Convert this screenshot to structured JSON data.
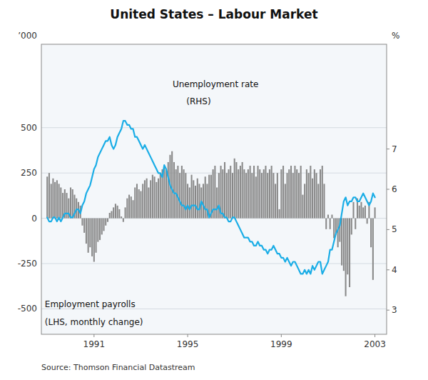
{
  "chart_data": {
    "type": "bar",
    "title": "United States – Labour Market",
    "source": "Source: Thomson Financial Datastream",
    "y_label": "’000",
    "y2_label": "%",
    "annotations": [
      "Unemployment rate",
      "(RHS)",
      "Employment payrolls",
      "(LHS, monthly change)"
    ],
    "grid": true,
    "xlim": [
      1988.75,
      2003.5
    ],
    "xticks": [
      1991,
      1995,
      1999,
      2003
    ],
    "ylim": [
      -640,
      960
    ],
    "yticks": [
      -500,
      -250,
      0,
      250,
      500
    ],
    "y2lim": [
      2.4,
      9.6
    ],
    "y2ticks": [
      3,
      4,
      5,
      6,
      7
    ],
    "x": [
      1989.0,
      1989.083,
      1989.167,
      1989.25,
      1989.333,
      1989.417,
      1989.5,
      1989.583,
      1989.667,
      1989.75,
      1989.833,
      1989.917,
      1990.0,
      1990.083,
      1990.167,
      1990.25,
      1990.333,
      1990.417,
      1990.5,
      1990.583,
      1990.667,
      1990.75,
      1990.833,
      1990.917,
      1991.0,
      1991.083,
      1991.167,
      1991.25,
      1991.333,
      1991.417,
      1991.5,
      1991.583,
      1991.667,
      1991.75,
      1991.833,
      1991.917,
      1992.0,
      1992.083,
      1992.167,
      1992.25,
      1992.333,
      1992.417,
      1992.5,
      1992.583,
      1992.667,
      1992.75,
      1992.833,
      1992.917,
      1993.0,
      1993.083,
      1993.167,
      1993.25,
      1993.333,
      1993.417,
      1993.5,
      1993.583,
      1993.667,
      1993.75,
      1993.833,
      1993.917,
      1994.0,
      1994.083,
      1994.167,
      1994.25,
      1994.333,
      1994.417,
      1994.5,
      1994.583,
      1994.667,
      1994.75,
      1994.833,
      1994.917,
      1995.0,
      1995.083,
      1995.167,
      1995.25,
      1995.333,
      1995.417,
      1995.5,
      1995.583,
      1995.667,
      1995.75,
      1995.833,
      1995.917,
      1996.0,
      1996.083,
      1996.167,
      1996.25,
      1996.333,
      1996.417,
      1996.5,
      1996.583,
      1996.667,
      1996.75,
      1996.833,
      1996.917,
      1997.0,
      1997.083,
      1997.167,
      1997.25,
      1997.333,
      1997.417,
      1997.5,
      1997.583,
      1997.667,
      1997.75,
      1997.833,
      1997.917,
      1998.0,
      1998.083,
      1998.167,
      1998.25,
      1998.333,
      1998.417,
      1998.5,
      1998.583,
      1998.667,
      1998.75,
      1998.833,
      1998.917,
      1999.0,
      1999.083,
      1999.167,
      1999.25,
      1999.333,
      1999.417,
      1999.5,
      1999.583,
      1999.667,
      1999.75,
      1999.833,
      1999.917,
      2000.0,
      2000.083,
      2000.167,
      2000.25,
      2000.333,
      2000.417,
      2000.5,
      2000.583,
      2000.667,
      2000.75,
      2000.833,
      2000.917,
      2001.0,
      2001.083,
      2001.167,
      2001.25,
      2001.333,
      2001.417,
      2001.5,
      2001.583,
      2001.667,
      2001.75,
      2001.833,
      2001.917,
      2002.0,
      2002.083,
      2002.167,
      2002.25,
      2002.333,
      2002.417,
      2002.5,
      2002.583,
      2002.667,
      2002.75,
      2002.833,
      2002.917,
      2003.0
    ],
    "series": [
      {
        "type": "bar",
        "color": "#888888",
        "values": [
          230,
          250,
          190,
          220,
          200,
          210,
          190,
          170,
          140,
          160,
          140,
          110,
          170,
          160,
          130,
          110,
          90,
          70,
          -40,
          -80,
          -140,
          -190,
          -160,
          -210,
          -240,
          -190,
          -130,
          -120,
          -90,
          -70,
          -40,
          -20,
          30,
          40,
          60,
          80,
          70,
          50,
          10,
          -20,
          60,
          110,
          130,
          120,
          100,
          170,
          190,
          160,
          150,
          190,
          210,
          220,
          170,
          210,
          240,
          230,
          200,
          220,
          250,
          270,
          290,
          270,
          310,
          350,
          370,
          310,
          270,
          290,
          250,
          290,
          270,
          250,
          190,
          170,
          240,
          210,
          180,
          220,
          190,
          170,
          190,
          230,
          190,
          240,
          240,
          270,
          290,
          170,
          250,
          290,
          270,
          310,
          250,
          270,
          290,
          250,
          330,
          310,
          270,
          290,
          310,
          270,
          250,
          270,
          290,
          250,
          290,
          230,
          290,
          270,
          250,
          270,
          290,
          250,
          270,
          290,
          250,
          190,
          250,
          50,
          270,
          290,
          190,
          250,
          270,
          290,
          250,
          290,
          270,
          250,
          290,
          130,
          190,
          270,
          250,
          290,
          220,
          270,
          250,
          190,
          270,
          290,
          190,
          -60,
          20,
          -60,
          20,
          -110,
          -90,
          -160,
          -130,
          -260,
          -290,
          -430,
          -310,
          -380,
          -90,
          90,
          -60,
          110,
          70,
          90,
          60,
          70,
          -30,
          90,
          -160,
          -340,
          60
        ]
      },
      {
        "type": "line",
        "axis": "y2",
        "color": "#1aade6",
        "values": [
          5.3,
          5.2,
          5.2,
          5.3,
          5.3,
          5.2,
          5.3,
          5.2,
          5.3,
          5.4,
          5.4,
          5.4,
          5.3,
          5.3,
          5.4,
          5.5,
          5.5,
          5.4,
          5.6,
          5.7,
          5.9,
          6.0,
          6.1,
          6.3,
          6.5,
          6.6,
          6.8,
          6.9,
          7.0,
          7.1,
          7.2,
          7.2,
          7.3,
          7.1,
          7.0,
          7.1,
          7.3,
          7.4,
          7.5,
          7.7,
          7.7,
          7.6,
          7.6,
          7.5,
          7.5,
          7.3,
          7.3,
          7.2,
          7.1,
          7.0,
          7.1,
          7.0,
          6.9,
          6.8,
          6.7,
          6.6,
          6.5,
          6.4,
          6.4,
          6.3,
          6.6,
          6.5,
          6.3,
          6.1,
          6.0,
          5.9,
          5.9,
          5.8,
          5.7,
          5.6,
          5.6,
          5.5,
          5.6,
          5.5,
          5.6,
          5.6,
          5.6,
          5.5,
          5.5,
          5.7,
          5.6,
          5.5,
          5.5,
          5.3,
          5.4,
          5.5,
          5.5,
          5.5,
          5.6,
          5.4,
          5.4,
          5.3,
          5.3,
          5.2,
          5.2,
          5.3,
          5.3,
          5.2,
          5.1,
          5.0,
          4.9,
          4.8,
          4.8,
          4.8,
          4.7,
          4.7,
          4.6,
          4.6,
          4.7,
          4.6,
          4.6,
          4.5,
          4.5,
          4.4,
          4.5,
          4.5,
          4.6,
          4.5,
          4.4,
          4.4,
          4.3,
          4.3,
          4.2,
          4.3,
          4.2,
          4.1,
          4.2,
          4.2,
          4.1,
          4.0,
          3.9,
          3.9,
          4.0,
          3.9,
          4.0,
          3.9,
          4.1,
          4.0,
          4.1,
          4.2,
          4.2,
          3.9,
          4.0,
          4.1,
          4.2,
          4.5,
          4.5,
          4.7,
          4.9,
          5.0,
          5.1,
          5.4,
          5.7,
          5.8,
          5.6,
          5.7,
          5.7,
          5.8,
          5.8,
          5.7,
          5.7,
          5.8,
          5.9,
          5.8,
          5.7,
          5.6,
          5.7,
          5.9,
          5.8
        ]
      }
    ]
  }
}
